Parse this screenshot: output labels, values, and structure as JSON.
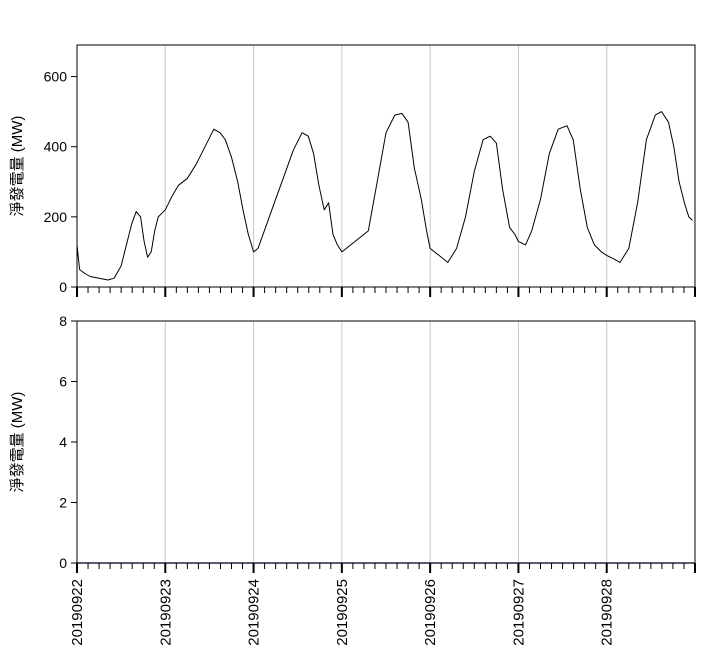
{
  "chart_data": [
    {
      "type": "line",
      "title": "",
      "ylabel": "淨發電量 (MW)",
      "xlabel": "",
      "ylim": [
        0,
        690
      ],
      "yticks": [
        0,
        200,
        400,
        600
      ],
      "ytick_labels": [
        "0",
        "200",
        "400",
        "600"
      ],
      "xlim": [
        0,
        7
      ],
      "grid": "vertical",
      "series_color": "#000000",
      "series": [
        {
          "x": [
            0.0,
            0.03,
            0.08,
            0.15,
            0.25,
            0.35,
            0.42,
            0.5,
            0.56,
            0.62,
            0.67,
            0.72,
            0.76,
            0.8,
            0.84,
            0.88,
            0.92,
            0.96,
            1.0,
            1.08,
            1.15,
            1.25,
            1.35,
            1.45,
            1.55,
            1.62,
            1.68,
            1.75,
            1.82,
            1.88,
            1.94,
            2.0,
            2.05,
            2.15,
            2.25,
            2.35,
            2.45,
            2.55,
            2.62,
            2.68,
            2.74,
            2.8,
            2.85,
            2.9,
            2.95,
            3.0,
            3.1,
            3.2,
            3.3,
            3.4,
            3.5,
            3.6,
            3.68,
            3.75,
            3.82,
            3.9,
            3.96,
            4.0,
            4.1,
            4.2,
            4.3,
            4.4,
            4.5,
            4.6,
            4.68,
            4.75,
            4.82,
            4.9,
            4.96,
            5.0,
            5.08,
            5.15,
            5.25,
            5.35,
            5.45,
            5.55,
            5.62,
            5.7,
            5.78,
            5.86,
            5.94,
            6.0,
            6.08,
            6.15,
            6.25,
            6.35,
            6.45,
            6.55,
            6.62,
            6.7,
            6.76,
            6.82,
            6.88,
            6.93,
            6.97
          ],
          "values": [
            120,
            50,
            40,
            30,
            25,
            20,
            25,
            60,
            120,
            180,
            215,
            200,
            130,
            85,
            100,
            160,
            200,
            210,
            220,
            260,
            290,
            310,
            350,
            400,
            450,
            440,
            420,
            370,
            300,
            220,
            150,
            100,
            110,
            180,
            250,
            320,
            390,
            440,
            430,
            380,
            290,
            220,
            240,
            150,
            120,
            100,
            120,
            140,
            160,
            300,
            440,
            490,
            495,
            470,
            340,
            250,
            160,
            110,
            90,
            70,
            110,
            200,
            330,
            420,
            430,
            410,
            280,
            170,
            150,
            130,
            120,
            160,
            250,
            380,
            450,
            460,
            420,
            280,
            170,
            120,
            100,
            90,
            80,
            70,
            110,
            240,
            420,
            490,
            500,
            470,
            400,
            300,
            240,
            200,
            190
          ]
        }
      ]
    },
    {
      "type": "line",
      "title": "",
      "ylabel": "淨發電量 (MW)",
      "xlabel": "",
      "ylim": [
        0,
        8
      ],
      "yticks": [
        0,
        2,
        4,
        6,
        8
      ],
      "ytick_labels": [
        "0",
        "2",
        "4",
        "6",
        "8"
      ],
      "xlim": [
        0,
        7
      ],
      "grid": "vertical",
      "series_color": "#7070c0",
      "series": [
        {
          "x": [
            0,
            7
          ],
          "values": [
            0,
            0
          ]
        }
      ],
      "categories": [
        "20190922",
        "20190923",
        "20190924",
        "20190925",
        "20190926",
        "20190927",
        "20190928"
      ]
    }
  ]
}
